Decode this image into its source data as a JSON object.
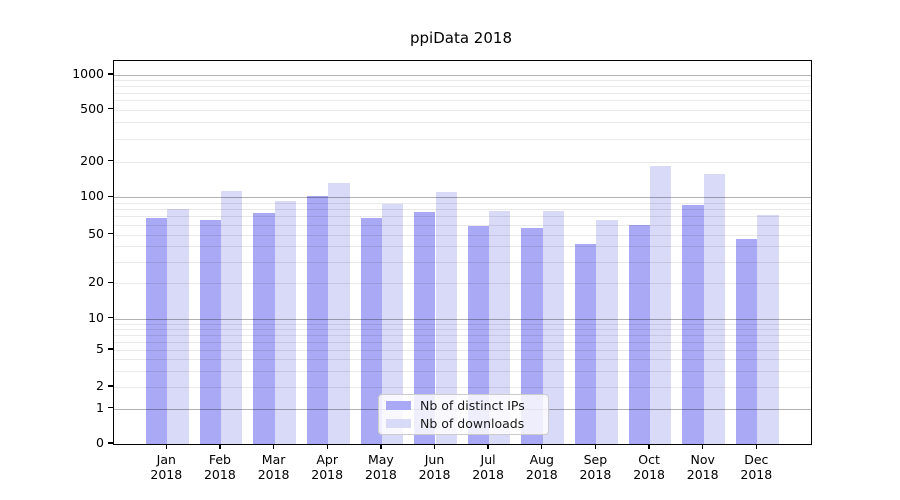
{
  "chart_data": {
    "type": "bar",
    "title": "ppiData 2018",
    "categories": [
      "Jan 2018",
      "Feb 2018",
      "Mar 2018",
      "Apr 2018",
      "May 2018",
      "Jun 2018",
      "Jul 2018",
      "Aug 2018",
      "Sep 2018",
      "Oct 2018",
      "Nov 2018",
      "Dec 2018"
    ],
    "series": [
      {
        "name": "Nb of distinct IPs",
        "color": "#a9a9f5",
        "values": [
          68,
          65,
          75,
          103,
          68,
          76,
          59,
          57,
          42,
          60,
          86,
          46
        ]
      },
      {
        "name": "Nb of downloads",
        "color": "#d9d9f8",
        "values": [
          80,
          113,
          93,
          131,
          89,
          111,
          78,
          77,
          66,
          182,
          158,
          72
        ]
      }
    ],
    "yscale": "symlog",
    "yticks": [
      0,
      1,
      2,
      5,
      10,
      20,
      50,
      100,
      200,
      500,
      1000
    ],
    "ylim": [
      0,
      1330
    ],
    "xlabel": "",
    "ylabel": "",
    "grid": true,
    "legend_position": "lower center"
  }
}
